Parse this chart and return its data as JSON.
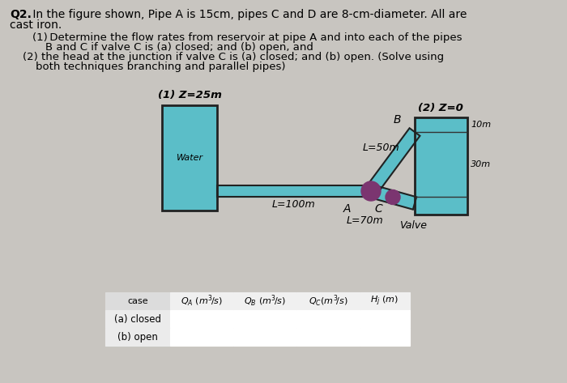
{
  "bg_color": "#c8c5c0",
  "water_color": "#5bbec8",
  "wall_color": "#222222",
  "junction_color": "#7b3570",
  "valve_color": "#7b3570",
  "label_z1": "(1) Z=25m",
  "label_z2": "(2) Z=0",
  "label_water": "Water",
  "label_L50": "L=50m",
  "label_L100": "L=100m",
  "label_L70": "L=70m",
  "label_valve": "Valve",
  "label_A": "A",
  "label_B": "B",
  "label_C": "C",
  "label_10m": "10m",
  "label_30m": "30m",
  "fig_width": 7.0,
  "fig_height": 4.73
}
